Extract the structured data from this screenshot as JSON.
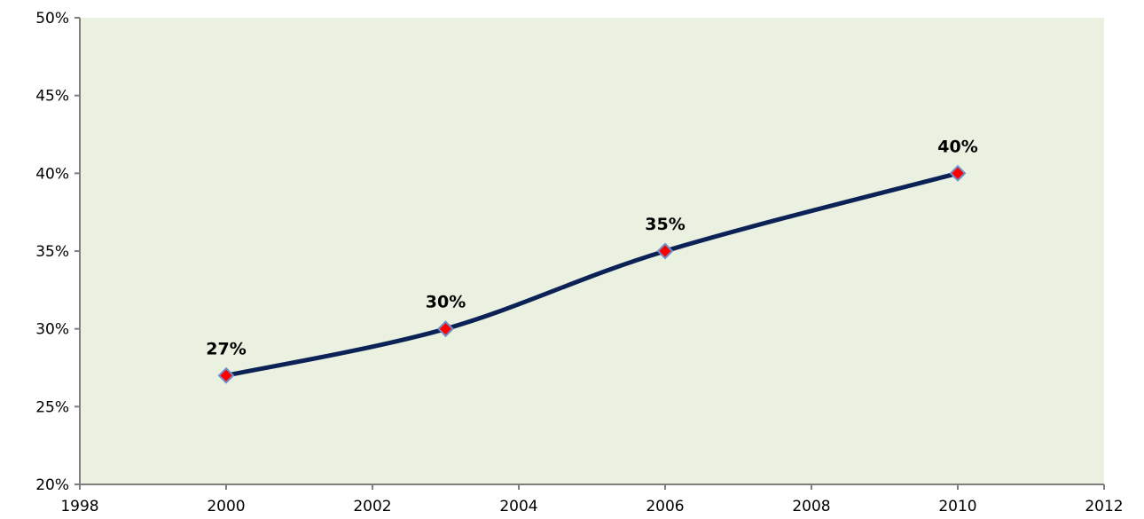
{
  "chart_data": {
    "type": "line",
    "title": "",
    "xlabel": "",
    "ylabel": "",
    "xlim": [
      1998,
      2012
    ],
    "ylim": [
      0.2,
      0.5
    ],
    "x_ticks": [
      1998,
      2000,
      2002,
      2004,
      2006,
      2008,
      2010,
      2012
    ],
    "x_tick_labels": [
      "1998",
      "2000",
      "2002",
      "2004",
      "2006",
      "2008",
      "2010",
      "2012"
    ],
    "y_ticks": [
      0.2,
      0.25,
      0.3,
      0.35,
      0.4,
      0.45,
      0.5
    ],
    "y_tick_labels": [
      "20%",
      "25%",
      "30%",
      "35%",
      "40%",
      "45%",
      "50%"
    ],
    "grid": false,
    "legend": "none",
    "smoothed": true,
    "series": [
      {
        "x": [
          2000,
          2003,
          2006,
          2010
        ],
        "values": [
          0.27,
          0.3,
          0.35,
          0.4
        ],
        "data_labels": [
          "27%",
          "30%",
          "35%",
          "40%"
        ],
        "line_color": "#0c2257",
        "marker": "diamond",
        "marker_fill": "#ff0000",
        "marker_edge": "#6f8fc8"
      }
    ],
    "colors": {
      "plot_background": "#eaf1e0",
      "axis": "#7f7f7f"
    }
  }
}
